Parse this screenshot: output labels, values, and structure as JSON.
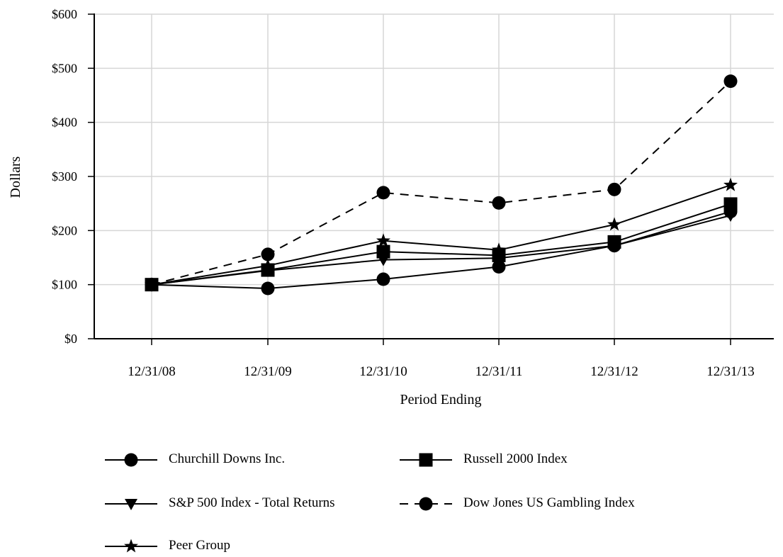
{
  "chart_data": {
    "type": "line",
    "title": "",
    "xlabel": "Period Ending",
    "ylabel": "Dollars",
    "categories": [
      "12/31/08",
      "12/31/09",
      "12/31/10",
      "12/31/11",
      "12/31/12",
      "12/31/13"
    ],
    "ylim": [
      0,
      600
    ],
    "yticks": [
      "$0",
      "$100",
      "$200",
      "$300",
      "$400",
      "$500",
      "$600"
    ],
    "grid": true,
    "legend_position": "bottom",
    "series": [
      {
        "name": "Churchill Downs Inc.",
        "marker": "circle",
        "line": "solid",
        "values": [
          100,
          93,
          110,
          133,
          172,
          235
        ]
      },
      {
        "name": "Russell 2000 Index",
        "marker": "square",
        "line": "solid",
        "values": [
          100,
          127,
          161,
          154,
          179,
          249
        ]
      },
      {
        "name": "S&P 500 Index - Total Returns",
        "marker": "triangle-down",
        "line": "solid",
        "values": [
          100,
          126,
          146,
          149,
          172,
          228
        ]
      },
      {
        "name": "Dow Jones US Gambling Index",
        "marker": "circle",
        "line": "dashed",
        "values": [
          100,
          156,
          270,
          251,
          276,
          476
        ]
      },
      {
        "name": "Peer Group",
        "marker": "star",
        "line": "solid",
        "values": [
          100,
          135,
          181,
          164,
          211,
          284
        ]
      }
    ]
  }
}
